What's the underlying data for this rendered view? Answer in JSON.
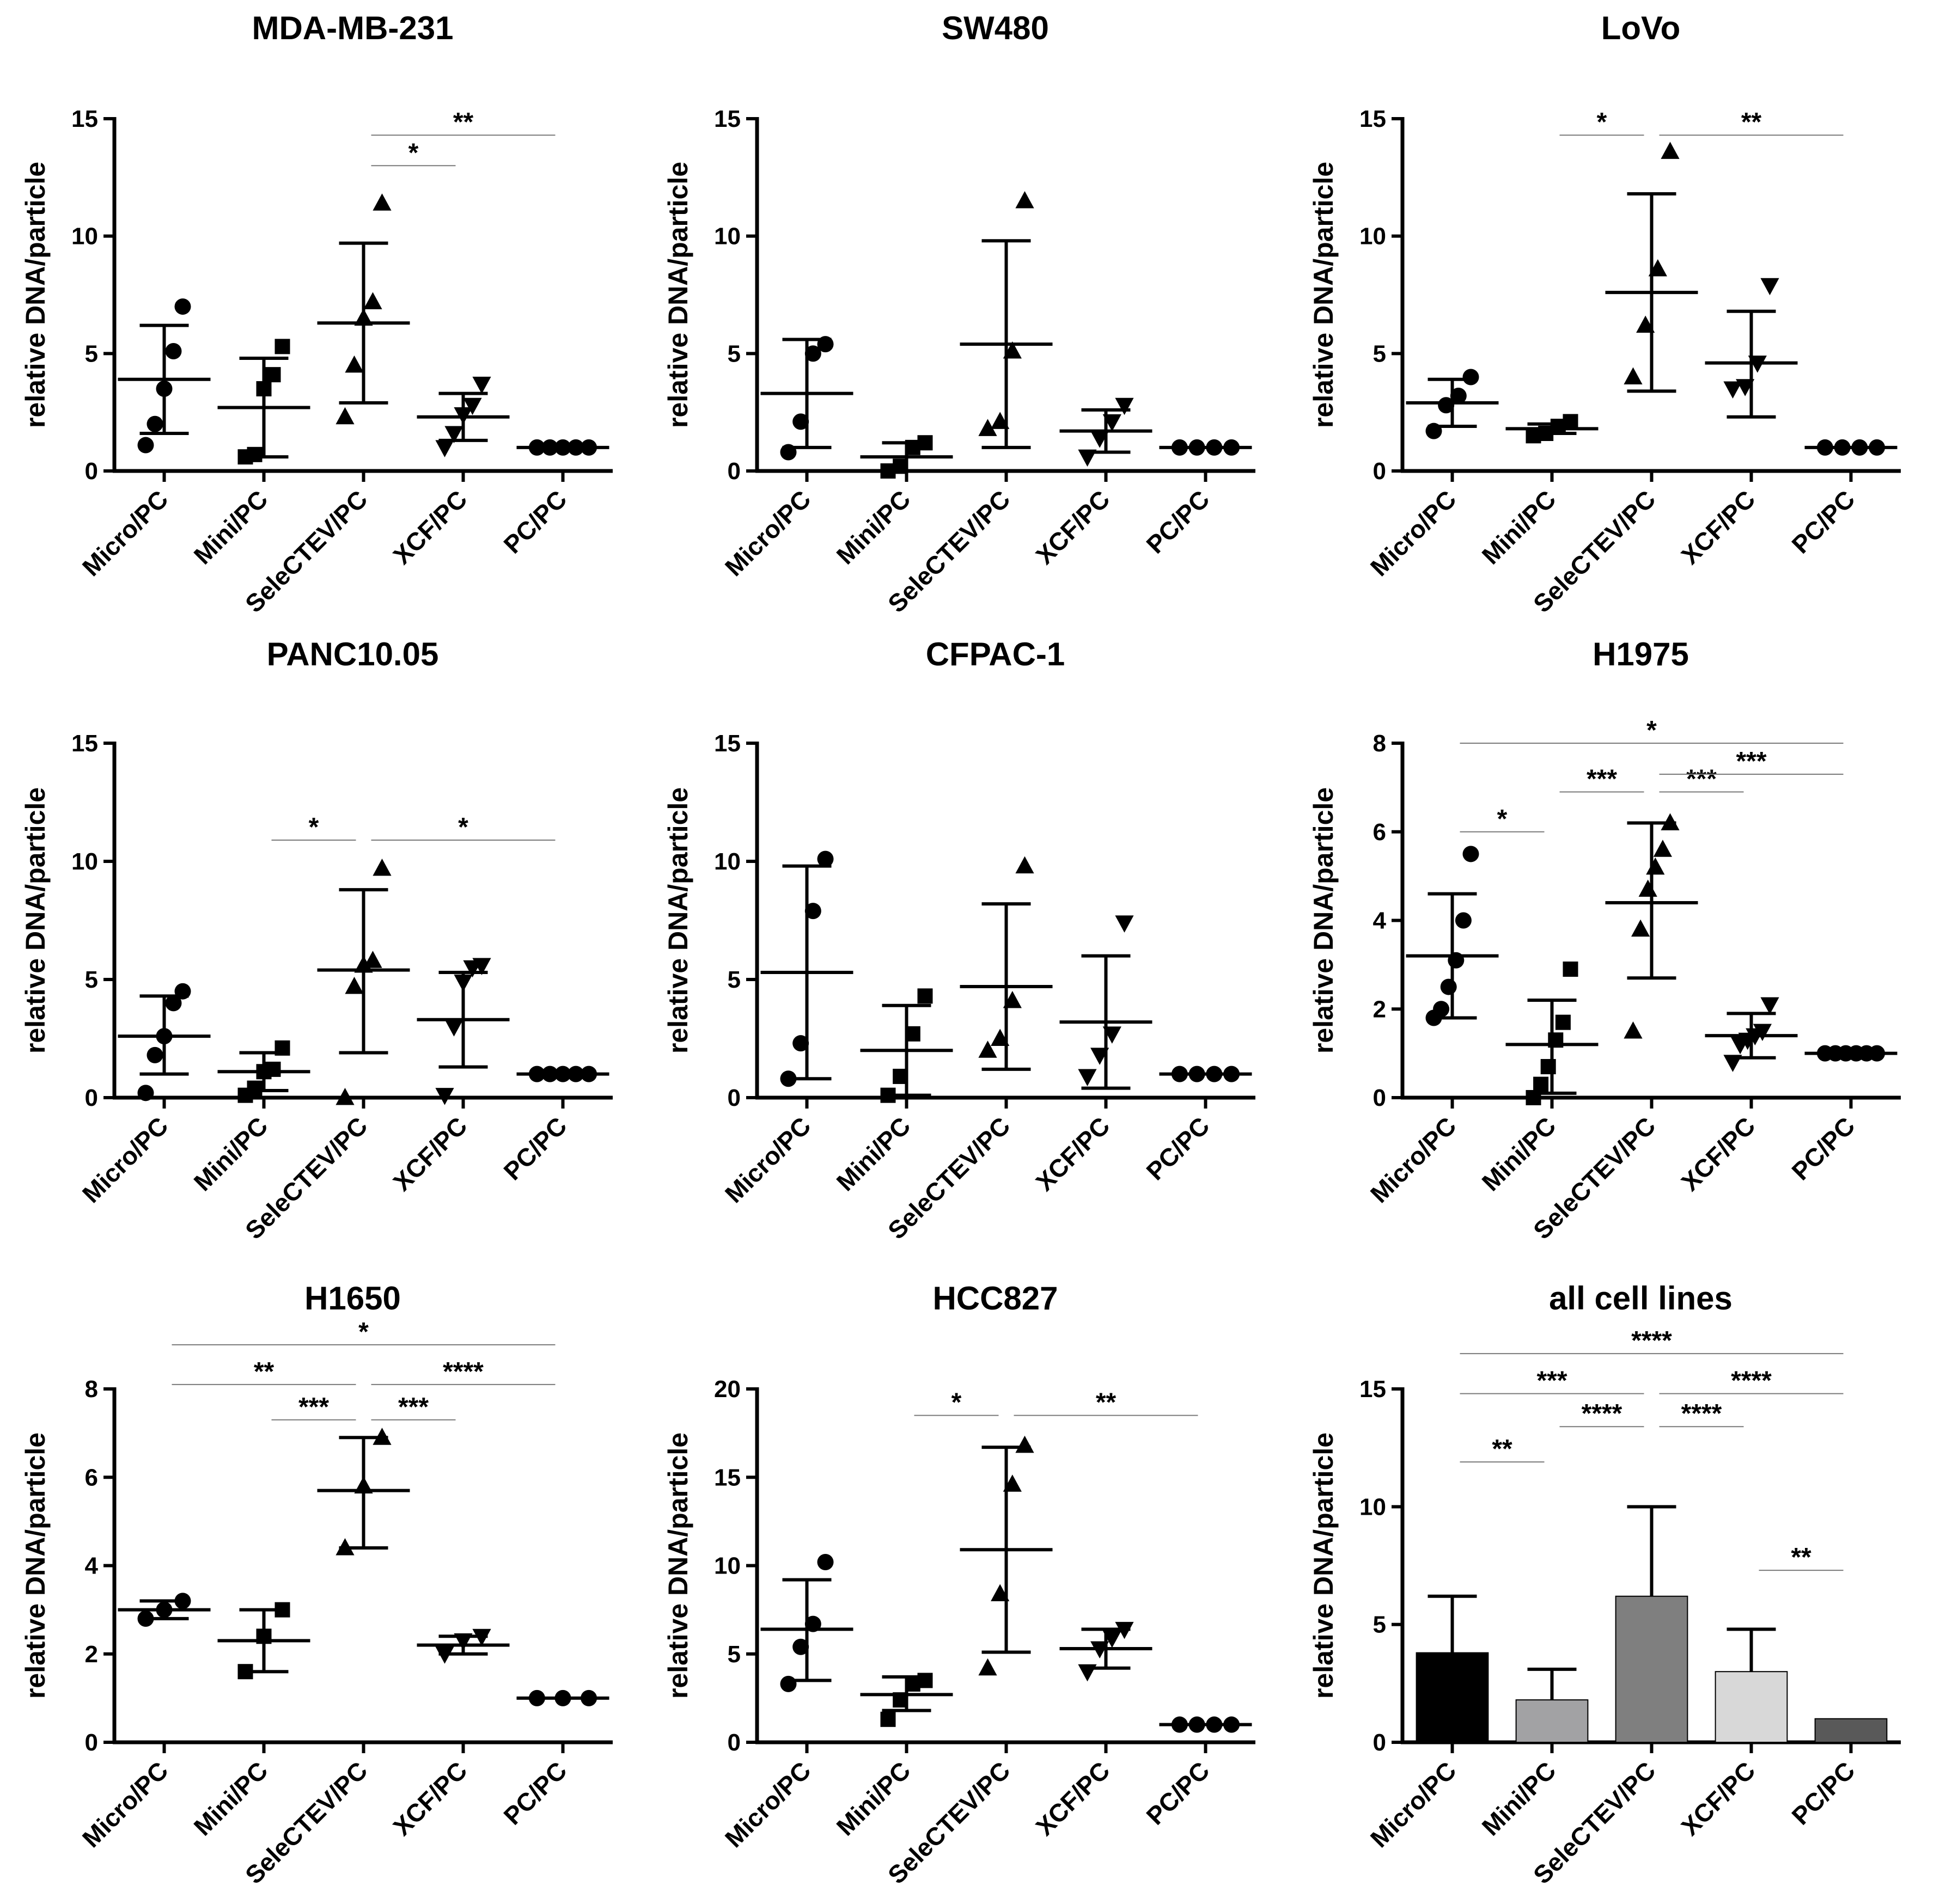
{
  "figure": {
    "ylabel": "relative DNA/particle"
  },
  "chart_data": [
    {
      "type": "scatter",
      "title": "MDA-MB-231",
      "ylabel": "relative DNA/particle",
      "categories": [
        "Micro/PC",
        "Mini/PC",
        "SeleCTEV/PC",
        "XCF/PC",
        "PC/PC"
      ],
      "ylim": [
        0,
        15
      ],
      "yticks": [
        0,
        5,
        10,
        15
      ],
      "groups": [
        {
          "name": "Micro/PC",
          "marker": "circle",
          "points": [
            1.1,
            2.0,
            3.5,
            5.1,
            7.0
          ],
          "mean": 3.9,
          "sd_low": 1.6,
          "sd_high": 6.2
        },
        {
          "name": "Mini/PC",
          "marker": "square",
          "points": [
            0.6,
            0.7,
            3.5,
            4.1,
            5.3
          ],
          "mean": 2.7,
          "sd_low": 0.6,
          "sd_high": 4.8
        },
        {
          "name": "SeleCTEV/PC",
          "marker": "triangle-up",
          "points": [
            2.3,
            4.5,
            6.5,
            7.2,
            11.4
          ],
          "mean": 6.3,
          "sd_low": 2.9,
          "sd_high": 9.7
        },
        {
          "name": "XCF/PC",
          "marker": "triangle-down",
          "points": [
            1.0,
            1.6,
            2.4,
            2.8,
            3.7
          ],
          "mean": 2.3,
          "sd_low": 1.3,
          "sd_high": 3.3
        },
        {
          "name": "PC/PC",
          "marker": "circle",
          "points": [
            1.0,
            1.0,
            1.0,
            1.0,
            1.0
          ],
          "mean": 1.0,
          "sd_low": 1.0,
          "sd_high": 1.0
        }
      ],
      "brackets": [
        {
          "from": 2,
          "to": 3,
          "label": "*",
          "y": 13.0
        },
        {
          "from": 2,
          "to": 4,
          "label": "**",
          "y": 14.3
        }
      ]
    },
    {
      "type": "scatter",
      "title": "SW480",
      "ylabel": "relative DNA/particle",
      "categories": [
        "Micro/PC",
        "Mini/PC",
        "SeleCTEV/PC",
        "XCF/PC",
        "PC/PC"
      ],
      "ylim": [
        0,
        15
      ],
      "yticks": [
        0,
        5,
        10,
        15
      ],
      "groups": [
        {
          "name": "Micro/PC",
          "marker": "circle",
          "points": [
            0.8,
            2.1,
            5.0,
            5.4
          ],
          "mean": 3.3,
          "sd_low": 1.0,
          "sd_high": 5.6
        },
        {
          "name": "Mini/PC",
          "marker": "square",
          "points": [
            0.0,
            0.2,
            1.0,
            1.2
          ],
          "mean": 0.6,
          "sd_low": 0.0,
          "sd_high": 1.2
        },
        {
          "name": "SeleCTEV/PC",
          "marker": "triangle-up",
          "points": [
            1.8,
            2.1,
            5.1,
            11.5
          ],
          "mean": 5.4,
          "sd_low": 1.0,
          "sd_high": 9.8
        },
        {
          "name": "XCF/PC",
          "marker": "triangle-down",
          "points": [
            0.6,
            1.4,
            2.1,
            2.8
          ],
          "mean": 1.7,
          "sd_low": 0.8,
          "sd_high": 2.6
        },
        {
          "name": "PC/PC",
          "marker": "circle",
          "points": [
            1.0,
            1.0,
            1.0,
            1.0
          ],
          "mean": 1.0,
          "sd_low": 1.0,
          "sd_high": 1.0
        }
      ],
      "brackets": []
    },
    {
      "type": "scatter",
      "title": "LoVo",
      "ylabel": "relative DNA/particle",
      "categories": [
        "Micro/PC",
        "Mini/PC",
        "SeleCTEV/PC",
        "XCF/PC",
        "PC/PC"
      ],
      "ylim": [
        0,
        15
      ],
      "yticks": [
        0,
        5,
        10,
        15
      ],
      "groups": [
        {
          "name": "Micro/PC",
          "marker": "circle",
          "points": [
            1.7,
            2.8,
            3.2,
            4.0
          ],
          "mean": 2.9,
          "sd_low": 1.9,
          "sd_high": 3.9
        },
        {
          "name": "Mini/PC",
          "marker": "square",
          "points": [
            1.5,
            1.6,
            1.9,
            2.1
          ],
          "mean": 1.8,
          "sd_low": 1.6,
          "sd_high": 2.0
        },
        {
          "name": "SeleCTEV/PC",
          "marker": "triangle-up",
          "points": [
            4.0,
            6.2,
            8.6,
            13.6
          ],
          "mean": 7.6,
          "sd_low": 3.4,
          "sd_high": 11.8
        },
        {
          "name": "XCF/PC",
          "marker": "triangle-down",
          "points": [
            3.5,
            3.6,
            4.6,
            7.9
          ],
          "mean": 4.6,
          "sd_low": 2.3,
          "sd_high": 6.8
        },
        {
          "name": "PC/PC",
          "marker": "circle",
          "points": [
            1.0,
            1.0,
            1.0,
            1.0
          ],
          "mean": 1.0,
          "sd_low": 1.0,
          "sd_high": 1.0
        }
      ],
      "brackets": [
        {
          "from": 1,
          "to": 2,
          "label": "*",
          "y": 14.3
        },
        {
          "from": 2,
          "to": 4,
          "label": "**",
          "y": 14.3
        }
      ]
    },
    {
      "type": "scatter",
      "title": "PANC10.05",
      "ylabel": "relative DNA/particle",
      "categories": [
        "Micro/PC",
        "Mini/PC",
        "SeleCTEV/PC",
        "XCF/PC",
        "PC/PC"
      ],
      "ylim": [
        0,
        15
      ],
      "yticks": [
        0,
        5,
        10,
        15
      ],
      "groups": [
        {
          "name": "Micro/PC",
          "marker": "circle",
          "points": [
            0.2,
            1.8,
            2.6,
            4.0,
            4.5
          ],
          "mean": 2.6,
          "sd_low": 1.0,
          "sd_high": 4.3
        },
        {
          "name": "Mini/PC",
          "marker": "square",
          "points": [
            0.1,
            0.4,
            1.1,
            1.2,
            2.1
          ],
          "mean": 1.1,
          "sd_low": 0.3,
          "sd_high": 1.9
        },
        {
          "name": "SeleCTEV/PC",
          "marker": "triangle-up",
          "points": [
            0.0,
            4.7,
            5.6,
            5.8,
            9.7
          ],
          "mean": 5.4,
          "sd_low": 1.9,
          "sd_high": 8.8
        },
        {
          "name": "XCF/PC",
          "marker": "triangle-down",
          "points": [
            0.1,
            3.0,
            4.9,
            5.5,
            5.6
          ],
          "mean": 3.3,
          "sd_low": 1.3,
          "sd_high": 5.3
        },
        {
          "name": "PC/PC",
          "marker": "circle",
          "points": [
            1.0,
            1.0,
            1.0,
            1.0,
            1.0
          ],
          "mean": 1.0,
          "sd_low": 1.0,
          "sd_high": 1.0
        }
      ],
      "brackets": [
        {
          "from": 1,
          "to": 2,
          "label": "*",
          "y": 10.9
        },
        {
          "from": 2,
          "to": 4,
          "label": "*",
          "y": 10.9
        }
      ]
    },
    {
      "type": "scatter",
      "title": "CFPAC-1",
      "ylabel": "relative DNA/particle",
      "categories": [
        "Micro/PC",
        "Mini/PC",
        "SeleCTEV/PC",
        "XCF/PC",
        "PC/PC"
      ],
      "ylim": [
        0,
        15
      ],
      "yticks": [
        0,
        5,
        10,
        15
      ],
      "groups": [
        {
          "name": "Micro/PC",
          "marker": "circle",
          "points": [
            0.8,
            2.3,
            7.9,
            10.1
          ],
          "mean": 5.3,
          "sd_low": 0.8,
          "sd_high": 9.8
        },
        {
          "name": "Mini/PC",
          "marker": "square",
          "points": [
            0.1,
            0.9,
            2.7,
            4.3
          ],
          "mean": 2.0,
          "sd_low": 0.1,
          "sd_high": 3.9
        },
        {
          "name": "SeleCTEV/PC",
          "marker": "triangle-up",
          "points": [
            2.0,
            2.5,
            4.1,
            9.8
          ],
          "mean": 4.7,
          "sd_low": 1.2,
          "sd_high": 8.2
        },
        {
          "name": "XCF/PC",
          "marker": "triangle-down",
          "points": [
            0.9,
            1.8,
            2.7,
            7.4
          ],
          "mean": 3.2,
          "sd_low": 0.4,
          "sd_high": 6.0
        },
        {
          "name": "PC/PC",
          "marker": "circle",
          "points": [
            1.0,
            1.0,
            1.0,
            1.0
          ],
          "mean": 1.0,
          "sd_low": 1.0,
          "sd_high": 1.0
        }
      ],
      "brackets": []
    },
    {
      "type": "scatter",
      "title": "H1975",
      "ylabel": "relative DNA/particle",
      "categories": [
        "Micro/PC",
        "Mini/PC",
        "SeleCTEV/PC",
        "XCF/PC",
        "PC/PC"
      ],
      "ylim": [
        0,
        8
      ],
      "yticks": [
        0,
        2,
        4,
        6,
        8
      ],
      "groups": [
        {
          "name": "Micro/PC",
          "marker": "circle",
          "points": [
            1.8,
            2.0,
            2.5,
            3.1,
            4.0,
            5.5
          ],
          "mean": 3.2,
          "sd_low": 1.8,
          "sd_high": 4.6
        },
        {
          "name": "Mini/PC",
          "marker": "square",
          "points": [
            0.0,
            0.3,
            0.7,
            1.3,
            1.7,
            2.9
          ],
          "mean": 1.2,
          "sd_low": 0.1,
          "sd_high": 2.2
        },
        {
          "name": "SeleCTEV/PC",
          "marker": "triangle-up",
          "points": [
            1.5,
            3.8,
            4.7,
            5.2,
            5.6,
            6.2
          ],
          "mean": 4.4,
          "sd_low": 2.7,
          "sd_high": 6.2
        },
        {
          "name": "XCF/PC",
          "marker": "triangle-down",
          "points": [
            0.8,
            1.2,
            1.3,
            1.4,
            1.5,
            2.1
          ],
          "mean": 1.4,
          "sd_low": 0.9,
          "sd_high": 1.9
        },
        {
          "name": "PC/PC",
          "marker": "circle",
          "points": [
            1.0,
            1.0,
            1.0,
            1.0,
            1.0,
            1.0
          ],
          "mean": 1.0,
          "sd_low": 1.0,
          "sd_high": 1.0
        }
      ],
      "brackets": [
        {
          "from": 0,
          "to": 1,
          "label": "*",
          "y": 6.0
        },
        {
          "from": 1,
          "to": 2,
          "label": "***",
          "y": 6.9
        },
        {
          "from": 2,
          "to": 3,
          "label": "***",
          "y": 6.9
        },
        {
          "from": 2,
          "to": 4,
          "label": "***",
          "y": 7.3
        },
        {
          "from": 0,
          "to": 4,
          "label": "*",
          "y": 8.0
        }
      ]
    },
    {
      "type": "scatter",
      "title": "H1650",
      "ylabel": "relative DNA/particle",
      "categories": [
        "Micro/PC",
        "Mini/PC",
        "SeleCTEV/PC",
        "XCF/PC",
        "PC/PC"
      ],
      "ylim": [
        0,
        8
      ],
      "yticks": [
        0,
        2,
        4,
        6,
        8
      ],
      "groups": [
        {
          "name": "Micro/PC",
          "marker": "circle",
          "points": [
            2.8,
            3.0,
            3.2
          ],
          "mean": 3.0,
          "sd_low": 2.8,
          "sd_high": 3.2
        },
        {
          "name": "Mini/PC",
          "marker": "square",
          "points": [
            1.6,
            2.4,
            3.0
          ],
          "mean": 2.3,
          "sd_low": 1.6,
          "sd_high": 3.0
        },
        {
          "name": "SeleCTEV/PC",
          "marker": "triangle-up",
          "points": [
            4.4,
            5.8,
            6.9
          ],
          "mean": 5.7,
          "sd_low": 4.4,
          "sd_high": 6.9
        },
        {
          "name": "XCF/PC",
          "marker": "triangle-down",
          "points": [
            2.0,
            2.3,
            2.4
          ],
          "mean": 2.2,
          "sd_low": 2.0,
          "sd_high": 2.4
        },
        {
          "name": "PC/PC",
          "marker": "circle",
          "points": [
            1.0,
            1.0,
            1.0
          ],
          "mean": 1.0,
          "sd_low": 1.0,
          "sd_high": 1.0
        }
      ],
      "brackets": [
        {
          "from": 1,
          "to": 2,
          "label": "***",
          "y": 7.3
        },
        {
          "from": 2,
          "to": 3,
          "label": "***",
          "y": 7.3
        },
        {
          "from": 0,
          "to": 2,
          "label": "**",
          "y": 8.1
        },
        {
          "from": 2,
          "to": 4,
          "label": "****",
          "y": 8.1
        },
        {
          "from": 0,
          "to": 4,
          "label": "*",
          "y": 9.0
        }
      ]
    },
    {
      "type": "scatter",
      "title": "HCC827",
      "ylabel": "relative DNA/particle",
      "categories": [
        "Micro/PC",
        "Mini/PC",
        "SeleCTEV/PC",
        "XCF/PC",
        "PC/PC"
      ],
      "ylim": [
        0,
        20
      ],
      "yticks": [
        0,
        5,
        10,
        15,
        20
      ],
      "groups": [
        {
          "name": "Micro/PC",
          "marker": "circle",
          "points": [
            3.3,
            5.4,
            6.7,
            10.2
          ],
          "mean": 6.4,
          "sd_low": 3.5,
          "sd_high": 9.2
        },
        {
          "name": "Mini/PC",
          "marker": "square",
          "points": [
            1.3,
            2.4,
            3.3,
            3.5
          ],
          "mean": 2.7,
          "sd_low": 1.8,
          "sd_high": 3.7
        },
        {
          "name": "SeleCTEV/PC",
          "marker": "triangle-up",
          "points": [
            4.2,
            8.4,
            14.6,
            16.8
          ],
          "mean": 10.9,
          "sd_low": 5.1,
          "sd_high": 16.7
        },
        {
          "name": "XCF/PC",
          "marker": "triangle-down",
          "points": [
            4.0,
            5.3,
            5.9,
            6.4
          ],
          "mean": 5.3,
          "sd_low": 4.2,
          "sd_high": 6.4
        },
        {
          "name": "PC/PC",
          "marker": "circle",
          "points": [
            1.0,
            1.0,
            1.0,
            1.0
          ],
          "mean": 1.0,
          "sd_low": 1.0,
          "sd_high": 1.0
        }
      ],
      "brackets": [
        {
          "from": 1,
          "to": 2,
          "label": "*",
          "y": 18.5
        },
        {
          "from": 2,
          "to": 4,
          "label": "**",
          "y": 18.5
        }
      ]
    },
    {
      "type": "bar",
      "title": "all cell lines",
      "ylabel": "relative DNA/particle",
      "categories": [
        "Micro/PC",
        "Mini/PC",
        "SeleCTEV/PC",
        "XCF/PC",
        "PC/PC"
      ],
      "ylim": [
        0,
        15
      ],
      "yticks": [
        0,
        5,
        10,
        15
      ],
      "values": [
        3.8,
        1.8,
        6.2,
        3.0,
        1.0
      ],
      "sd_high": [
        6.2,
        3.1,
        10.0,
        4.8,
        1.0
      ],
      "colors": [
        "#000000",
        "#a2a2a4",
        "#7f7f7f",
        "#d8d8d8",
        "#595959"
      ],
      "brackets": [
        {
          "from": 0,
          "to": 1,
          "label": "**",
          "y": 11.9
        },
        {
          "from": 3,
          "to": 4,
          "label": "**",
          "y": 7.3
        },
        {
          "from": 1,
          "to": 2,
          "label": "****",
          "y": 13.4
        },
        {
          "from": 2,
          "to": 3,
          "label": "****",
          "y": 13.4
        },
        {
          "from": 0,
          "to": 2,
          "label": "***",
          "y": 14.8
        },
        {
          "from": 2,
          "to": 4,
          "label": "****",
          "y": 14.8
        },
        {
          "from": 0,
          "to": 4,
          "label": "****",
          "y": 16.5
        }
      ]
    }
  ]
}
